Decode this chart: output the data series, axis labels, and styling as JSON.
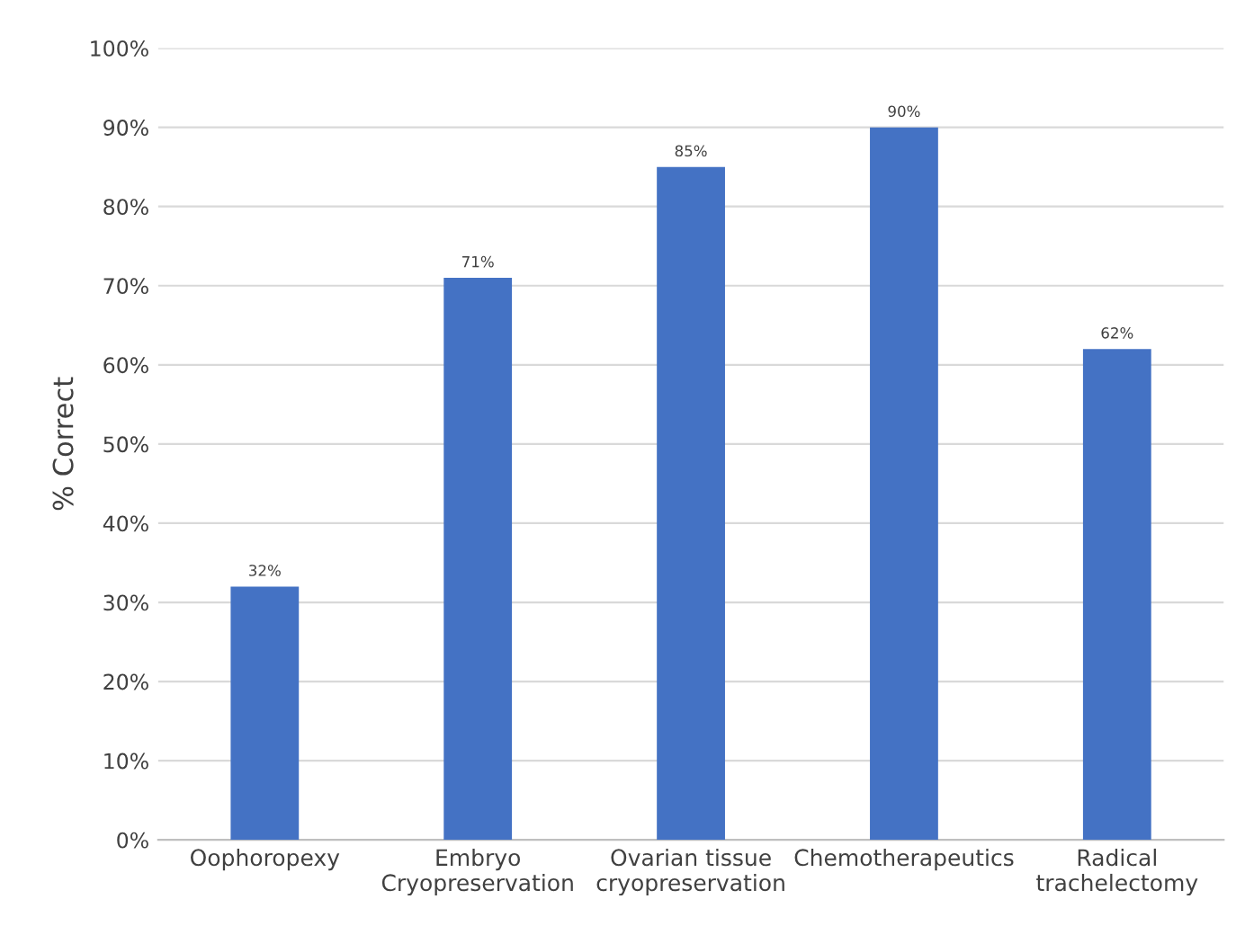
{
  "chart_data": {
    "type": "bar",
    "ylabel": "% Correct",
    "categories": [
      "Oophoropexy",
      "Embryo\nCryopreservation",
      "Ovarian tissue\ncryopreservation",
      "Chemotherapeutics",
      "Radical\ntrachelectomy"
    ],
    "values": [
      32,
      71,
      85,
      90,
      62
    ],
    "value_labels": [
      "32%",
      "71%",
      "85%",
      "90%",
      "62%"
    ],
    "color": "#4472c4",
    "ylim": [
      0,
      100
    ],
    "yticks": [
      {
        "value": 0,
        "label": "0%"
      },
      {
        "value": 10,
        "label": "10%"
      },
      {
        "value": 20,
        "label": "20%"
      },
      {
        "value": 30,
        "label": "30%"
      },
      {
        "value": 40,
        "label": "40%"
      },
      {
        "value": 50,
        "label": "50%"
      },
      {
        "value": 60,
        "label": "60%"
      },
      {
        "value": 70,
        "label": "70%"
      },
      {
        "value": 80,
        "label": "80%"
      },
      {
        "value": 90,
        "label": "90%"
      },
      {
        "value": 100,
        "label": "100%"
      }
    ],
    "grid": "y"
  }
}
